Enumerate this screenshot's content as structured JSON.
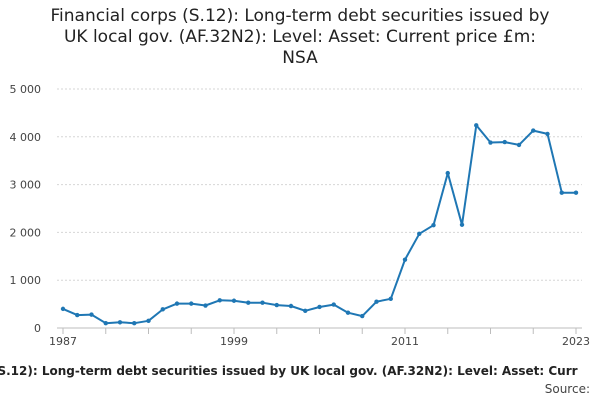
{
  "chart_data": {
    "type": "line",
    "title_lines": [
      "Financial corps (S.12): Long-term debt securities issued by",
      "UK local gov. (AF.32N2): Level: Asset: Current price £m:",
      "NSA"
    ],
    "xlabel": "",
    "ylabel": "",
    "x_tick_labels": [
      "1987",
      "1999",
      "2011",
      "2023"
    ],
    "y_tick_labels": [
      "0",
      "1 000",
      "2 000",
      "3 000",
      "4 000",
      "5 000"
    ],
    "xlim": [
      1987,
      2023
    ],
    "ylim": [
      0,
      5000
    ],
    "grid": true,
    "legend_position": "bottom",
    "x": [
      1987,
      1988,
      1989,
      1990,
      1991,
      1992,
      1993,
      1994,
      1995,
      1996,
      1997,
      1998,
      1999,
      2000,
      2001,
      2002,
      2003,
      2004,
      2005,
      2006,
      2007,
      2008,
      2009,
      2010,
      2011,
      2012,
      2013,
      2014,
      2015,
      2016,
      2017,
      2018,
      2019,
      2020,
      2021,
      2022,
      2023
    ],
    "series": [
      {
        "name": "Financial corps (S.12): Long-term debt securities issued by UK local gov. (AF.32N2): Level: Asset: Current price £m: NSA",
        "values": [
          400,
          270,
          280,
          100,
          120,
          100,
          150,
          390,
          510,
          510,
          470,
          580,
          570,
          530,
          530,
          480,
          460,
          360,
          440,
          490,
          320,
          250,
          550,
          610,
          1430,
          1970,
          2150,
          3240,
          2160,
          4240,
          3880,
          3890,
          3830,
          4130,
          4060,
          2830,
          2830
        ],
        "color": "#1f77b4"
      }
    ]
  },
  "legend_text": "(S.12): Long-term debt securities issued by UK local gov. (AF.32N2): Level: Asset: Curr",
  "source_label": "Source:"
}
